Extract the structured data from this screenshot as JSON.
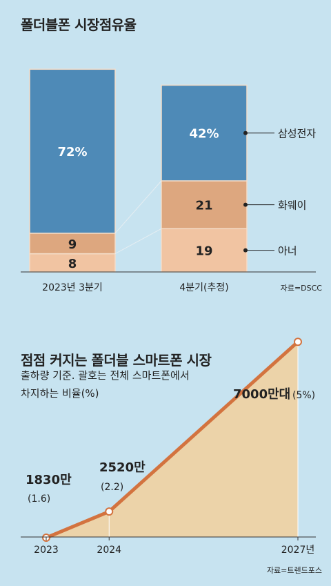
{
  "chart_data": [
    {
      "type": "bar",
      "title": "폴더블폰 시장점유율",
      "categories": [
        "2023년 3분기",
        "4분기(추정)"
      ],
      "series": [
        {
          "name": "아너",
          "values": [
            8,
            19
          ],
          "color": "#f1c4a2"
        },
        {
          "name": "화웨이",
          "values": [
            9,
            21
          ],
          "color": "#dda77f"
        },
        {
          "name": "삼성전자",
          "values": [
            72,
            42
          ],
          "color": "#4e8ab7"
        }
      ],
      "labels": [
        [
          "8",
          "9",
          "72%"
        ],
        [
          "19",
          "21",
          "42%"
        ]
      ],
      "source": "자료=DSCC"
    },
    {
      "type": "area",
      "title": "점점 커지는 폴더블 스마트폰 시장",
      "subtitle_lines": [
        "출하량 기준. 괄호는 전체 스마트폰에서",
        "차지하는 비율(%)"
      ],
      "x": [
        2023,
        2024,
        2027
      ],
      "x_tick_labels": [
        "2023",
        "2024",
        "2027년"
      ],
      "values": [
        1830,
        2520,
        7000
      ],
      "value_labels": [
        "1830만",
        "2520만",
        "7000만대"
      ],
      "share_labels": [
        "(1.6)",
        "(2.2)",
        "(5%)"
      ],
      "line_color": "#d3733f",
      "fill_color": "#ecd3a9",
      "source": "자료=트렌드포스"
    }
  ]
}
